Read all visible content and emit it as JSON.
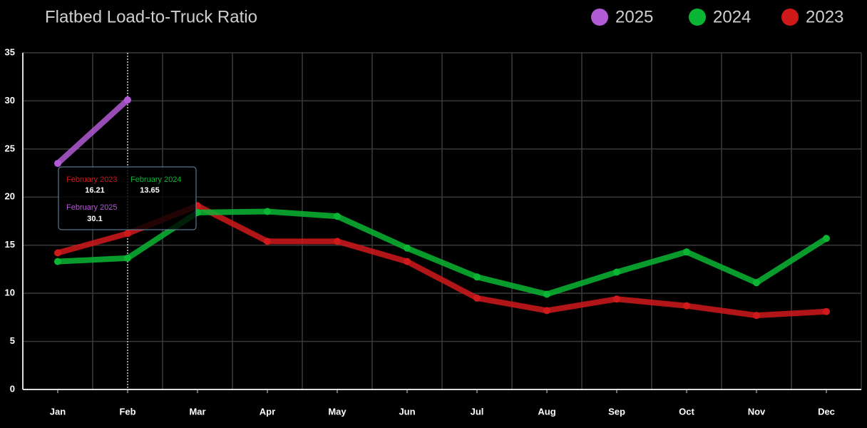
{
  "chart_data": {
    "type": "line",
    "title": "Flatbed Load-to-Truck Ratio",
    "categories": [
      "Jan",
      "Feb",
      "Mar",
      "Apr",
      "May",
      "Jun",
      "Jul",
      "Aug",
      "Sep",
      "Oct",
      "Nov",
      "Dec"
    ],
    "series": [
      {
        "name": "2025",
        "color": "#b35ad6",
        "values": [
          23.5,
          30.1,
          null,
          null,
          null,
          null,
          null,
          null,
          null,
          null,
          null,
          null
        ]
      },
      {
        "name": "2024",
        "color": "#0bb534",
        "values": [
          13.3,
          13.65,
          18.4,
          18.5,
          18.0,
          14.7,
          11.7,
          9.9,
          12.2,
          14.3,
          11.1,
          15.7
        ]
      },
      {
        "name": "2023",
        "color": "#d0191b",
        "values": [
          14.2,
          16.21,
          19.1,
          15.4,
          15.4,
          13.3,
          9.5,
          8.2,
          9.4,
          8.7,
          7.7,
          8.1
        ]
      }
    ],
    "ylim": [
      0,
      35
    ],
    "yticks": [
      0,
      5,
      10,
      15,
      20,
      25,
      30,
      35
    ],
    "grid": true,
    "tooltip": {
      "items": [
        "February 2023",
        "February 2024",
        "February 2025"
      ]
    }
  }
}
